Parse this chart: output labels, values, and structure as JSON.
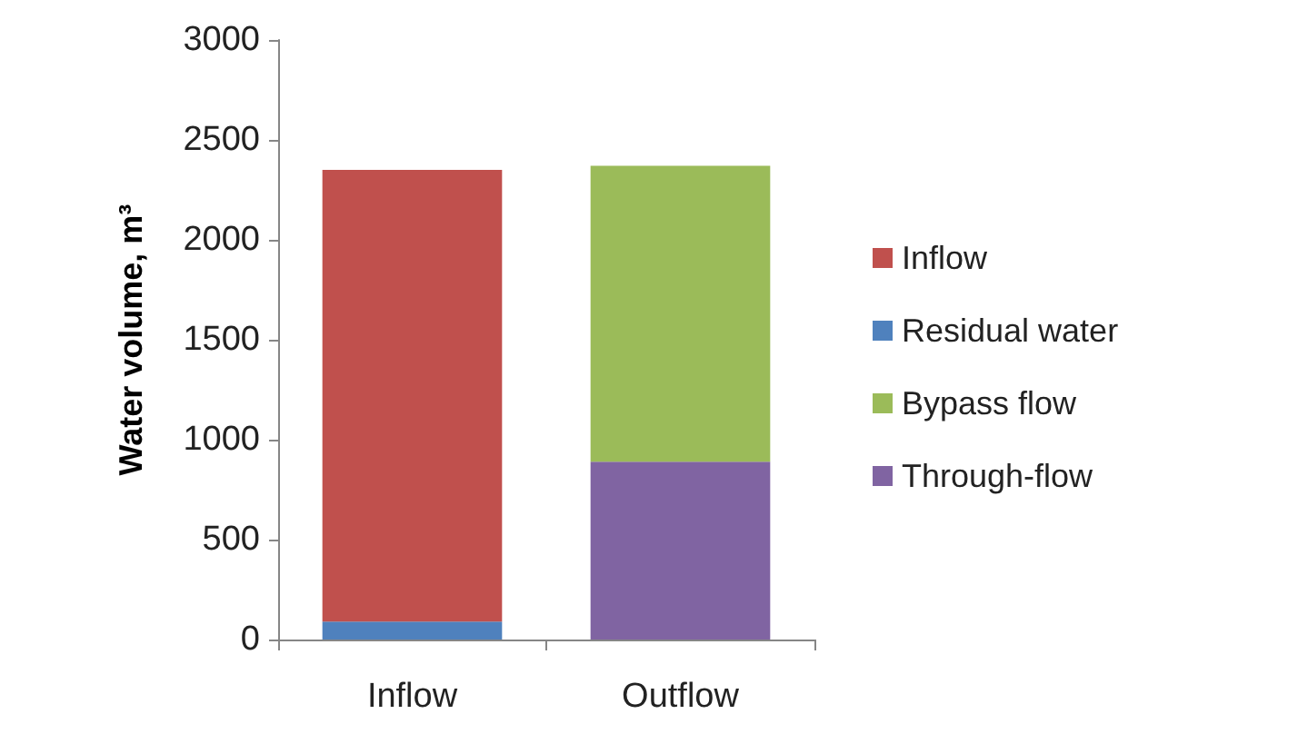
{
  "chart_data": {
    "type": "bar",
    "stacked": true,
    "ylabel": "Water volume, m³",
    "categories": [
      "Inflow",
      "Outflow"
    ],
    "series": [
      {
        "name": "Through-flow",
        "color": "#8064a2",
        "values": [
          null,
          890
        ]
      },
      {
        "name": "Bypass flow",
        "color": "#9bbb59",
        "values": [
          null,
          1480
        ]
      },
      {
        "name": "Residual water",
        "color": "#4f81bd",
        "values": [
          90,
          null
        ]
      },
      {
        "name": "Inflow",
        "color": "#c0504d",
        "values": [
          2260,
          null
        ]
      }
    ],
    "ylim": [
      0,
      3000
    ],
    "yticks": [
      0,
      500,
      1000,
      1500,
      2000,
      2500,
      3000
    ],
    "grid": false,
    "legend": "right"
  }
}
